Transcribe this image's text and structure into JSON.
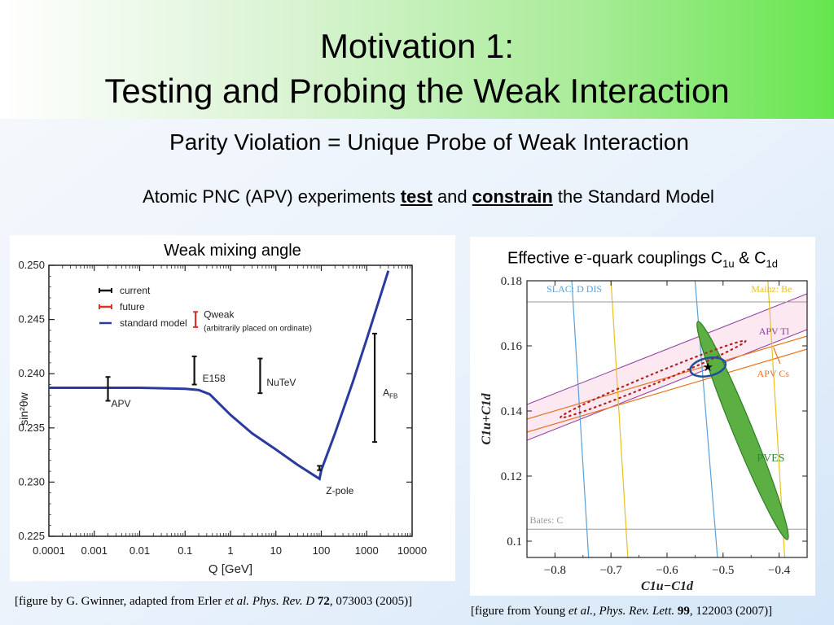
{
  "header": {
    "title_line1": "Motivation 1:",
    "title_line2": "Testing and Probing the Weak Interaction"
  },
  "subtitle": "Parity Violation = Unique Probe of Weak Interaction",
  "atomic": {
    "pre": "Atomic PNC (APV) experiments ",
    "test": "test",
    "and": " and ",
    "constrain": "constrain",
    "post": " the Standard Model"
  },
  "left_panel": {
    "title": "Weak mixing angle",
    "citation": {
      "pre": "[figure by G. Gwinner, adapted from Erler ",
      "etal": "et al.",
      "sp": " ",
      "journal": "Phys. Rev. D",
      "sp2": " ",
      "vol": "72",
      "post": ", 073003 (2005)]"
    }
  },
  "right_panel": {
    "title_pre": "Effective e",
    "title_sup": "-",
    "title_mid": "-quark couplings C",
    "title_sub1": "1u",
    "title_amp": " & C",
    "title_sub2": "1d",
    "citation": {
      "pre": "[figure from Young ",
      "etal": "et al.",
      "comma": ", ",
      "journal": "Phys. Rev. Lett.",
      "sp": " ",
      "vol": "99",
      "post": ", 122003 (2007)]"
    }
  },
  "colors": {
    "sm_curve": "#2b3a9e",
    "future": "#e0302a",
    "pves_fill": "#5cb043",
    "apv_tl": "#8e3a9a",
    "apv_cs": "#e8741e",
    "slac": "#5aa0d8",
    "mainz": "#e8c020",
    "bates": "#999999"
  },
  "chart_data": [
    {
      "type": "line",
      "xscale": "log",
      "xlabel": "Q [GeV]",
      "ylabel": "sin²θw",
      "xlim": [
        0.0001,
        10000
      ],
      "ylim": [
        0.225,
        0.25
      ],
      "x_ticks": [
        "0.0001",
        "0.001",
        "0.01",
        "0.1",
        "1",
        "10",
        "100",
        "1000",
        "10000"
      ],
      "y_ticks": [
        "0.225",
        "0.230",
        "0.235",
        "0.240",
        "0.245",
        "0.250"
      ],
      "legend": {
        "placement": "top-left",
        "entries": [
          {
            "label": "current",
            "color": "#111111"
          },
          {
            "label": "future",
            "color": "#e0302a"
          },
          {
            "label": "standard model",
            "color": "#2b3a9e"
          }
        ]
      },
      "series": [
        {
          "name": "standard model",
          "x": [
            0.0001,
            0.001,
            0.01,
            0.1,
            0.2,
            0.35,
            1,
            3,
            10,
            30,
            91.2,
            100,
            200,
            500,
            1000,
            3000
          ],
          "y": [
            0.2387,
            0.2387,
            0.2387,
            0.2386,
            0.2385,
            0.2381,
            0.2362,
            0.2345,
            0.233,
            0.2316,
            0.2303,
            0.2311,
            0.2345,
            0.2393,
            0.2432,
            0.2495
          ]
        }
      ],
      "error_bars": [
        {
          "label": "APV",
          "x": 0.002,
          "y": 0.2386,
          "err": 0.0011,
          "kind": "current"
        },
        {
          "label": "E158",
          "x": 0.16,
          "y": 0.2403,
          "err": 0.0013,
          "kind": "current"
        },
        {
          "label": "NuTeV",
          "x": 4.5,
          "y": 0.2398,
          "err": 0.0016,
          "kind": "current"
        },
        {
          "label": "Z-pole",
          "x": 91.2,
          "y": 0.2313,
          "err": 0.0002,
          "kind": "current"
        },
        {
          "label": "A_FB",
          "x": 1500,
          "y": 0.2387,
          "err": 0.005,
          "kind": "current"
        },
        {
          "label": "Qweak",
          "x": 0.17,
          "y": 0.245,
          "err": 0.0007,
          "kind": "future"
        }
      ],
      "annotations": [
        "(arbitrarily placed on ordinate)"
      ]
    },
    {
      "type": "scatter",
      "xlabel": "C1u−C1d",
      "ylabel": "C1u+C1d",
      "xlim": [
        -0.85,
        -0.35
      ],
      "ylim": [
        0.095,
        0.18
      ],
      "x_ticks": [
        "−0.8",
        "−0.7",
        "−0.6",
        "−0.5",
        "−0.4"
      ],
      "y_ticks": [
        "0.1",
        "0.12",
        "0.14",
        "0.16",
        "0.18"
      ],
      "constraints": [
        {
          "label": "SLAC: D DIS",
          "kind": "vertical-band",
          "x_at_ymax": [
            -0.77,
            -0.55
          ],
          "x_at_ymin": [
            -0.74,
            -0.51
          ]
        },
        {
          "label": "Mainz: Be",
          "kind": "vertical-band",
          "x_at_ymax": [
            -0.7,
            -0.42
          ],
          "x_at_ymin": [
            -0.67,
            -0.39
          ]
        },
        {
          "label": "Bates: C",
          "kind": "horizontal-band",
          "y": [
            0.1037,
            0.1735
          ]
        },
        {
          "label": "APV Tl",
          "kind": "slanted-band",
          "y_at_xmin": [
            0.131,
            0.142
          ],
          "y_at_xmax": [
            0.165,
            0.176
          ]
        },
        {
          "label": "APV Cs",
          "kind": "slanted-band",
          "y_at_xmin": [
            0.1335,
            0.1375
          ],
          "y_at_xmax": [
            0.159,
            0.163
          ]
        },
        {
          "label": "PVES",
          "kind": "ellipse",
          "center": [
            -0.465,
            0.133
          ],
          "endpoints": [
            [
              -0.545,
              0.1675
            ],
            [
              -0.385,
              0.1005
            ]
          ]
        }
      ],
      "combined_fit": {
        "center": [
          -0.527,
          0.1535
        ]
      },
      "standard_model_point": {
        "x": -0.527,
        "y": 0.1535
      }
    }
  ]
}
